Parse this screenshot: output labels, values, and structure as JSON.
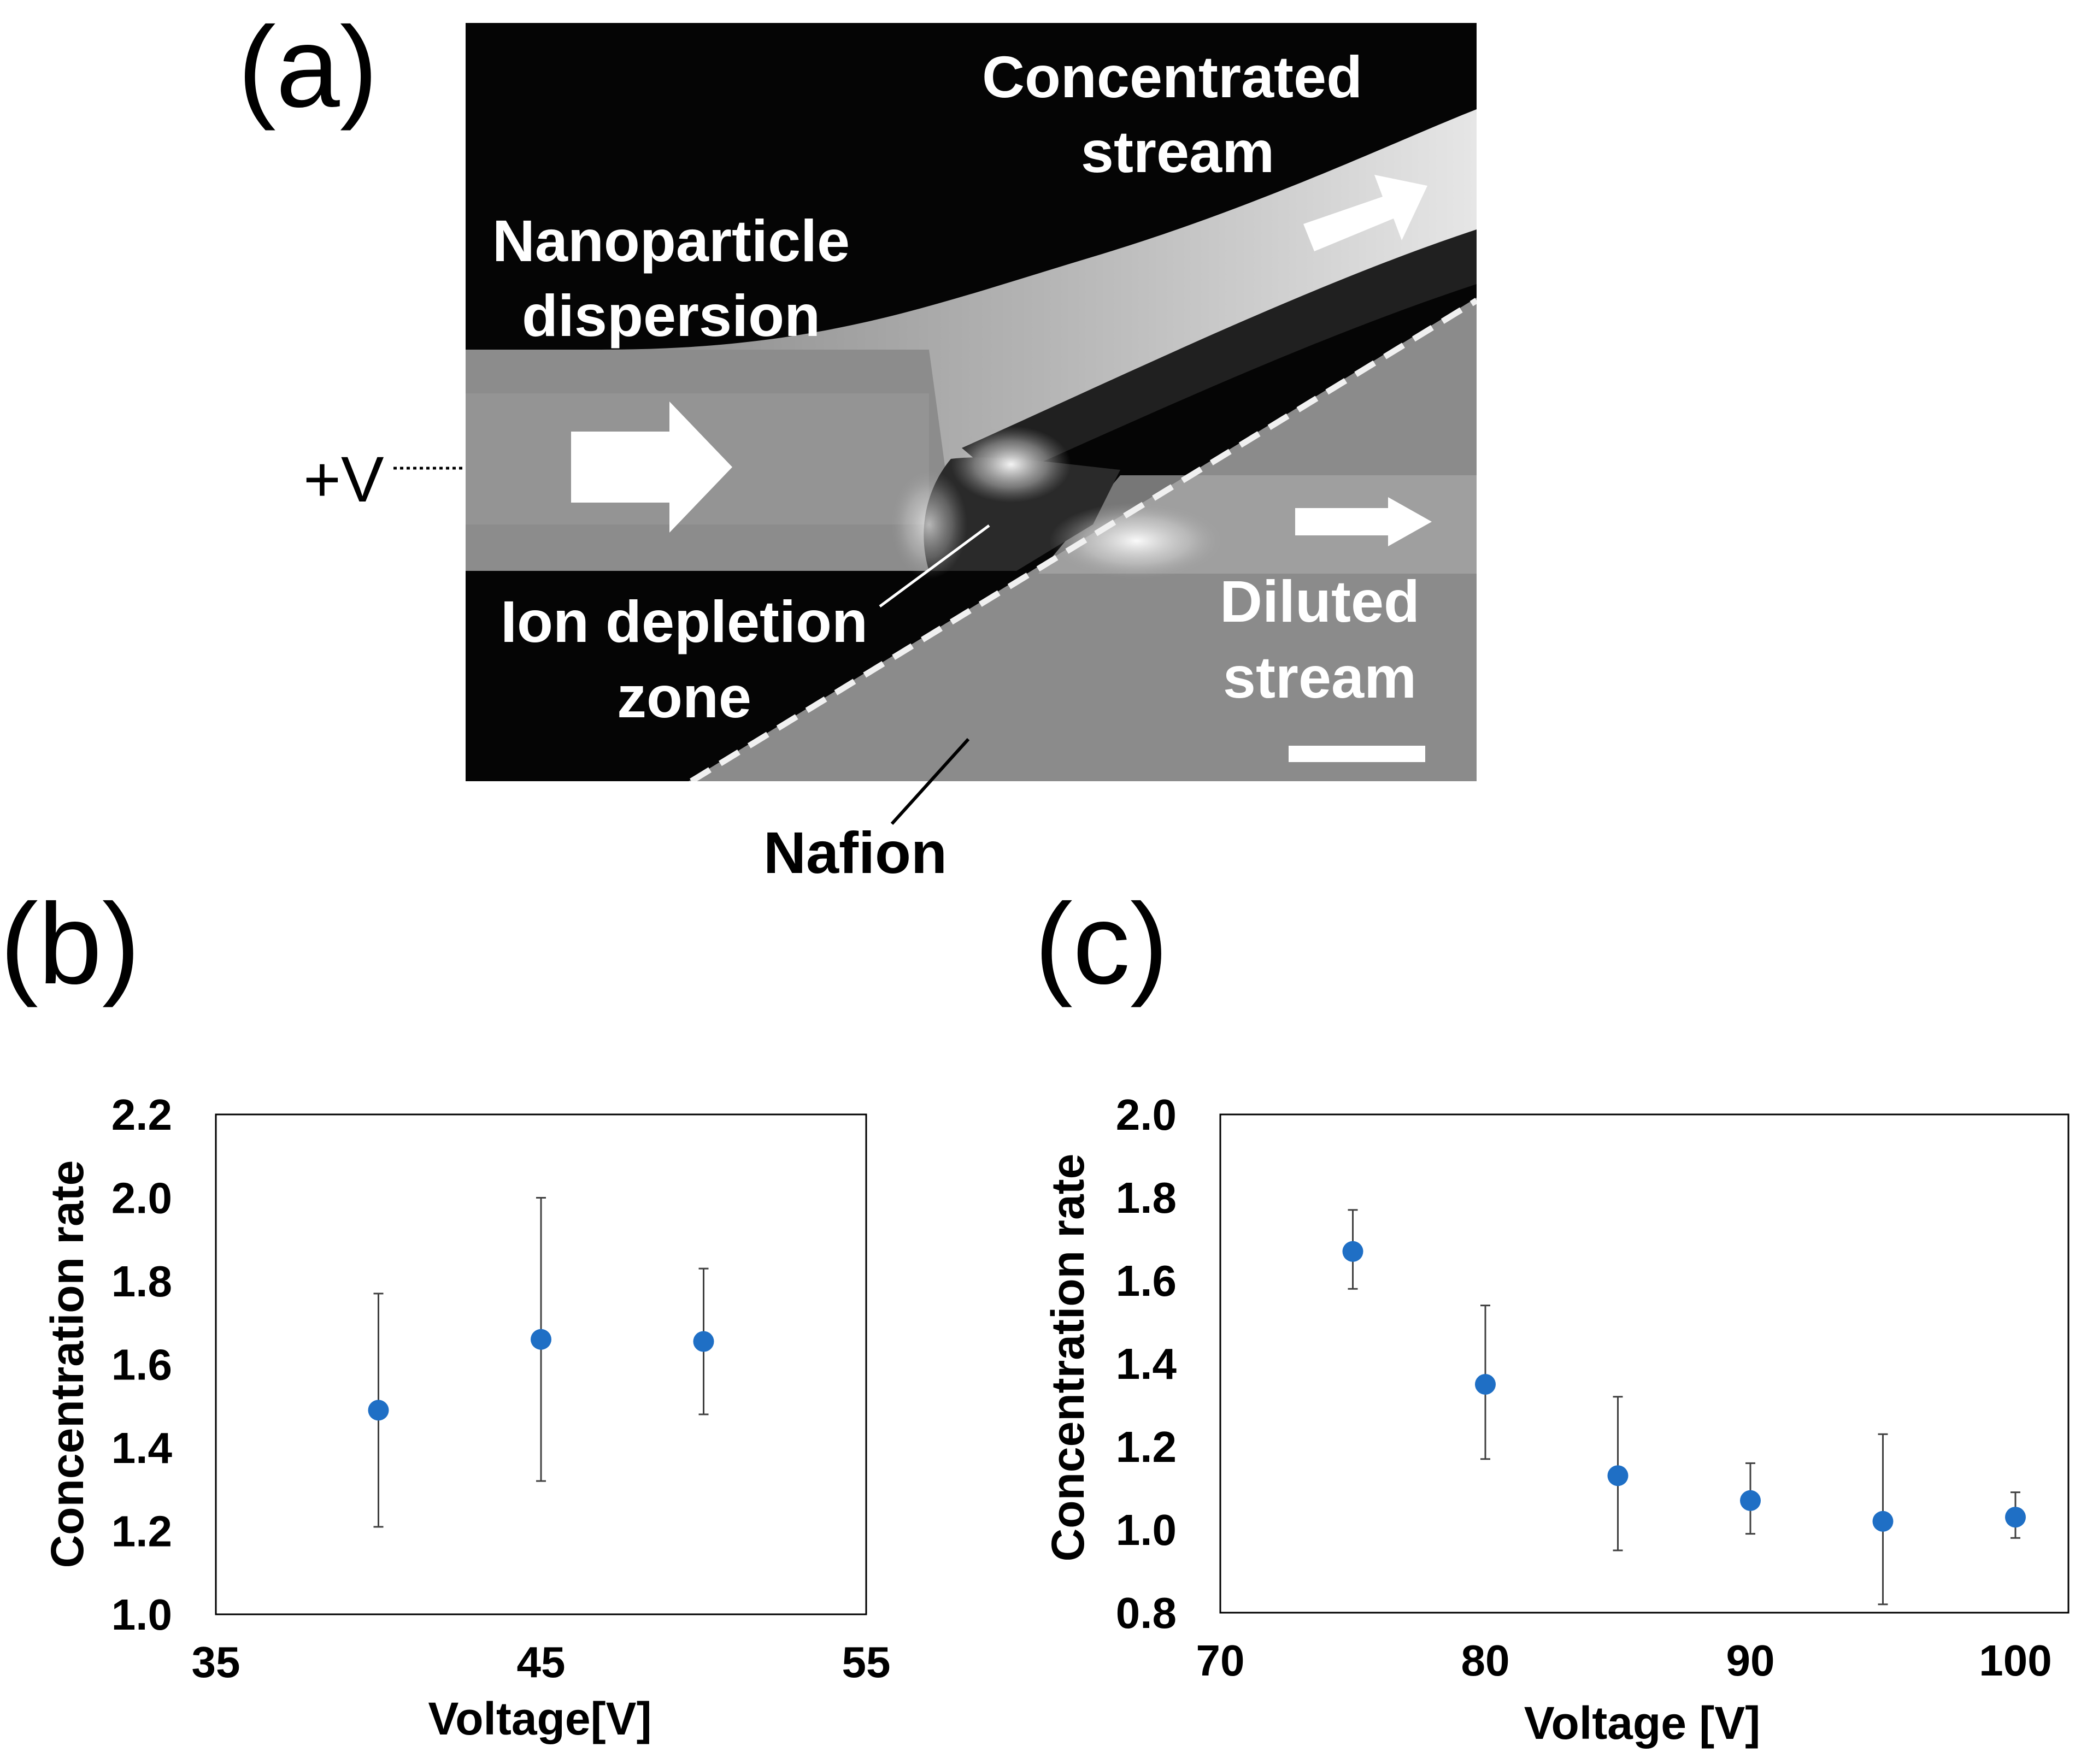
{
  "panels": {
    "a": {
      "label": "(a)"
    },
    "b": {
      "label": "(b)"
    },
    "c": {
      "label": "(c)"
    }
  },
  "micrograph": {
    "concentrated_line1": "Concentrated",
    "concentrated_line2": "stream",
    "nanoparticle_line1": "Nanoparticle",
    "nanoparticle_line2": "dispersion",
    "voltage_label": "+V",
    "ion_line1": "Ion depletion",
    "ion_line2": "zone",
    "diluted_line1": "Diluted",
    "diluted_line2": "stream",
    "nafion_label": "Nafion"
  },
  "colors": {
    "marker": "#1f6fc5",
    "errorbar": "#404040",
    "frame": "#000000"
  },
  "chart_data": [
    {
      "id": "b",
      "type": "scatter",
      "title": "",
      "xlabel": "Voltage[V]",
      "ylabel": "Concentration rate",
      "xlim": [
        35,
        55
      ],
      "ylim": [
        1.0,
        2.2
      ],
      "xticks": [
        "35",
        "45",
        "55"
      ],
      "yticks": [
        "1.0",
        "1.2",
        "1.4",
        "1.6",
        "1.8",
        "2.0",
        "2.2"
      ],
      "grid": false,
      "series": [
        {
          "name": "Concentration rate",
          "x": [
            40,
            45,
            50
          ],
          "y": [
            1.49,
            1.66,
            1.655
          ],
          "err_low": [
            1.21,
            1.32,
            1.48
          ],
          "err_high": [
            1.77,
            2.0,
            1.83
          ]
        }
      ]
    },
    {
      "id": "c",
      "type": "scatter",
      "title": "",
      "xlabel": "Voltage [V]",
      "ylabel": "Concentration rate",
      "xlim": [
        70,
        102
      ],
      "ylim": [
        0.8,
        2.0
      ],
      "xticks": [
        "70",
        "80",
        "90",
        "100"
      ],
      "yticks": [
        "0.8",
        "1.0",
        "1.2",
        "1.4",
        "1.6",
        "1.8",
        "2.0"
      ],
      "grid": false,
      "series": [
        {
          "name": "Concentration rate",
          "x": [
            75,
            80,
            85,
            90,
            95,
            100
          ],
          "y": [
            1.67,
            1.35,
            1.13,
            1.07,
            1.02,
            1.03
          ],
          "err_low": [
            1.58,
            1.17,
            0.95,
            0.99,
            0.82,
            0.98
          ],
          "err_high": [
            1.77,
            1.54,
            1.32,
            1.16,
            1.23,
            1.09
          ]
        }
      ]
    }
  ]
}
